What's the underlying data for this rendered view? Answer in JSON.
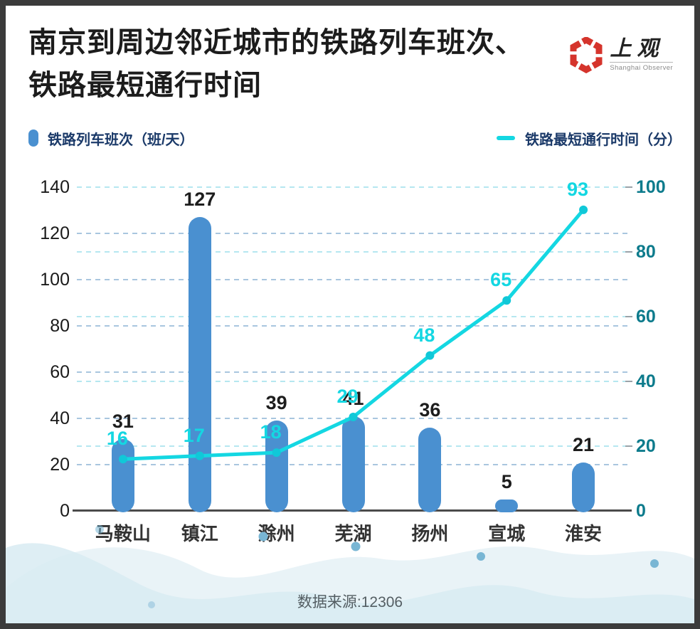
{
  "header": {
    "title_line1": "南京到周边邻近城市的铁路列车班次、",
    "title_line2": "铁路最短通行时间",
    "logo": {
      "cn": "上观",
      "en": "Shanghai Observer"
    }
  },
  "legend": {
    "bar_label": "铁路列车班次（班/天）",
    "line_label": "铁路最短通行时间（分）"
  },
  "chart_data": {
    "type": "bar+line combo",
    "categories": [
      "马鞍山",
      "镇江",
      "滁州",
      "芜湖",
      "扬州",
      "宣城",
      "淮安"
    ],
    "series": [
      {
        "name": "铁路列车班次（班/天）",
        "type": "bar",
        "axis": "left",
        "values": [
          31,
          127,
          39,
          41,
          36,
          5,
          21
        ]
      },
      {
        "name": "铁路最短通行时间（分）",
        "type": "line",
        "axis": "right",
        "values": [
          16,
          17,
          18,
          29,
          48,
          65,
          93
        ]
      }
    ],
    "left_axis": {
      "min": 0,
      "max": 140,
      "step": 20,
      "ticks": [
        0,
        20,
        40,
        60,
        80,
        100,
        120,
        140
      ]
    },
    "right_axis": {
      "min": 0,
      "max": 100,
      "step": 20,
      "ticks": [
        0,
        20,
        40,
        60,
        80,
        100
      ]
    },
    "grid": "horizontal dashed lines for both left and right axis ticks",
    "legend_position": "top"
  },
  "footer": {
    "source": "数据来源:12306"
  },
  "colors": {
    "bar": "#4a90d0",
    "line": "#14d7e2",
    "marker": "#10c8d8",
    "right_axis_text": "#0d7b8c",
    "legend_text": "#1b3a69",
    "grid_left": "#a9c6df",
    "grid_right": "#b5e7f0",
    "logo_red": "#d5342c",
    "wave_light": "#e9f3f7",
    "wave_mid": "#d8ebf2",
    "wave_dot": "#79b6d4"
  }
}
